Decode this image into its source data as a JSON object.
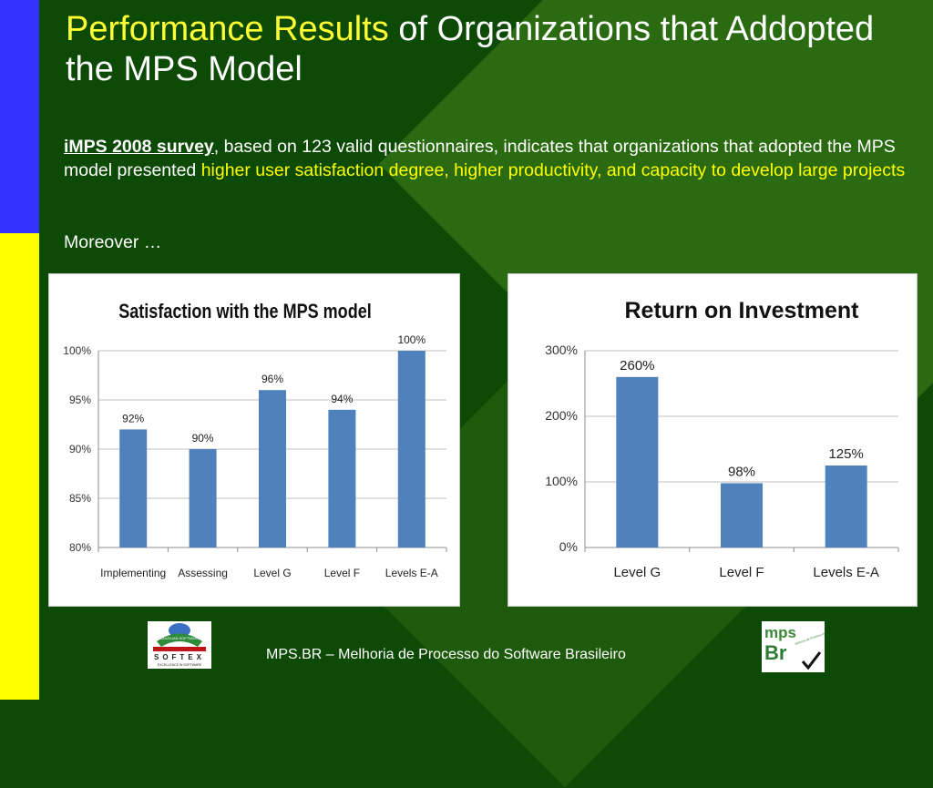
{
  "title": {
    "highlight": "Performance Results",
    "rest": " of Organizations that Addopted the MPS Model"
  },
  "intro": {
    "survey_link": "iMPS 2008 survey",
    "text1": ", based on 123 valid questionnaires, indicates that organizations that adopted the MPS model presented ",
    "highlight1": "higher user satisfaction degree, higher productivity,",
    "text2": " and capacity to develop large projects"
  },
  "moreover": "Moreover …",
  "footer": "MPS.BR – Melhoria de Processo do Software Brasileiro",
  "logos": {
    "left_text": "SOFTEX",
    "left_sub": "EXCELLENCE IN SOFTWARE",
    "left_top": "BRAZILIAN SOFTWARE",
    "right_top": "mps",
    "right_bottom": "Br",
    "right_small": "Melhoria de Processo do Software Brasileiro"
  },
  "colors": {
    "bar": "#4f81bd",
    "highlight": "#ffff00",
    "background": "#0c4a06"
  },
  "chart_data": [
    {
      "type": "bar",
      "title": "Satisfaction with the MPS model",
      "categories": [
        "Implementing",
        "Assessing",
        "Level G",
        "Level F",
        "Levels E-A"
      ],
      "values": [
        92,
        90,
        96,
        94,
        100
      ],
      "data_labels": [
        "92%",
        "90%",
        "96%",
        "94%",
        "100%"
      ],
      "ylim": [
        80,
        100
      ],
      "yticks": [
        80,
        85,
        90,
        95,
        100
      ],
      "ytick_labels": [
        "80%",
        "85%",
        "90%",
        "95%",
        "100%"
      ],
      "grid": true,
      "legend": "none"
    },
    {
      "type": "bar",
      "title": "Return on Investment",
      "categories": [
        "Level G",
        "Level F",
        "Levels E-A"
      ],
      "values": [
        260,
        98,
        125
      ],
      "data_labels": [
        "260%",
        "98%",
        "125%"
      ],
      "ylim": [
        0,
        300
      ],
      "yticks": [
        0,
        100,
        200,
        300
      ],
      "ytick_labels": [
        "0%",
        "100%",
        "200%",
        "300%"
      ],
      "grid": true,
      "legend": "none"
    }
  ]
}
